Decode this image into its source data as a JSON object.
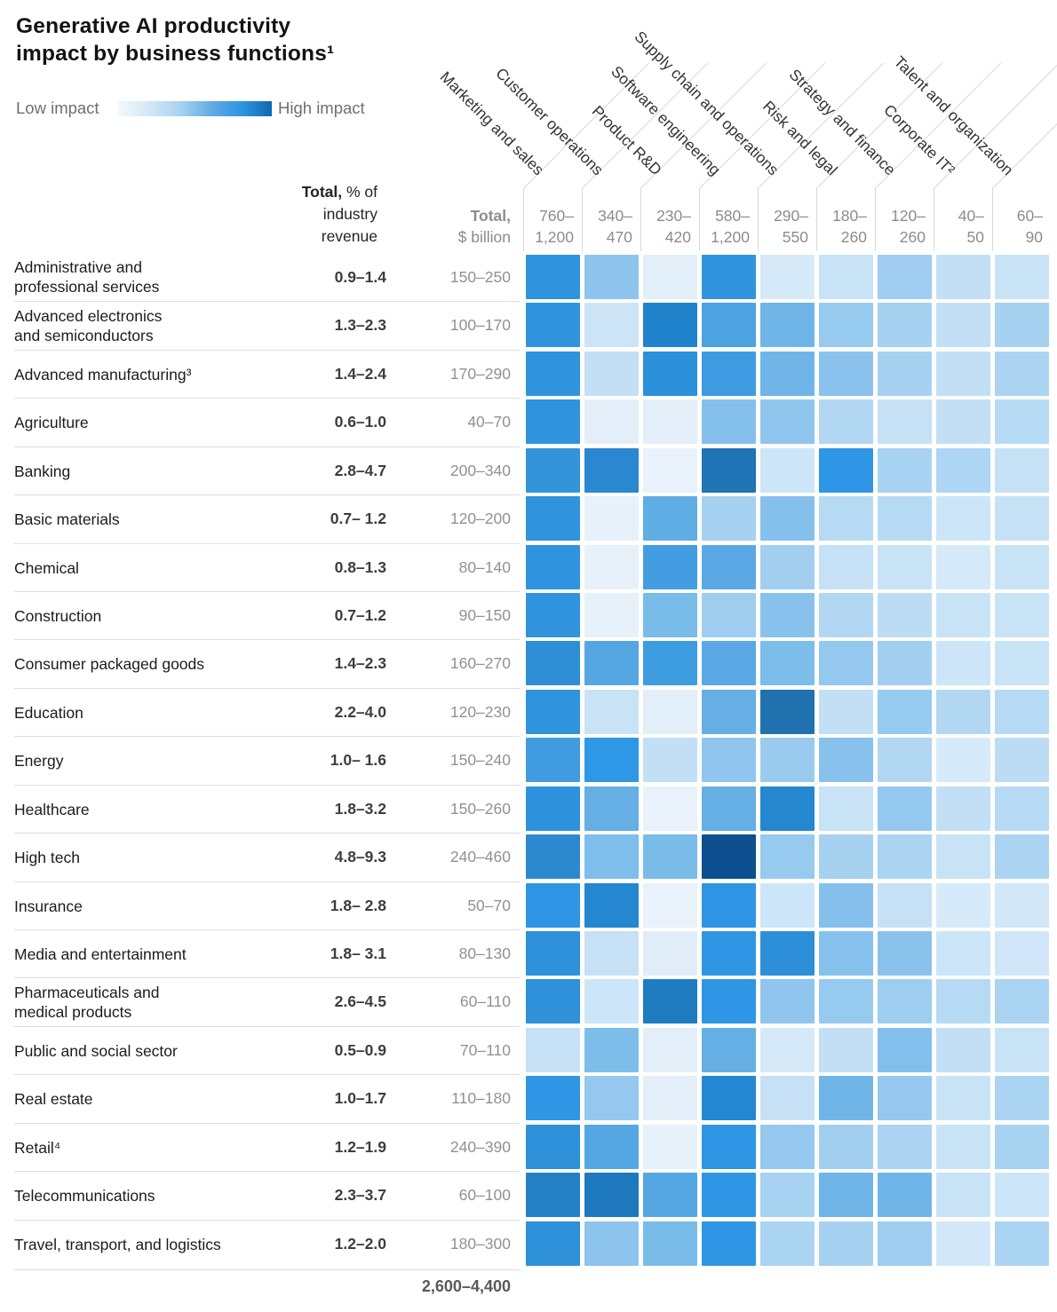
{
  "title": {
    "line1": "Generative AI productivity",
    "line2": "impact by business functions¹"
  },
  "legend": {
    "low_label": "Low impact",
    "high_label": "High impact",
    "gradient_low_color": "#f2f8fd",
    "gradient_high_color": "#1268ae"
  },
  "headers": {
    "pct": {
      "bold": "Total,",
      "rest": " % of",
      "line2": "industry",
      "line3": "revenue"
    },
    "billion": {
      "bold": "Total,",
      "line2": "$ billion"
    }
  },
  "grand_total_billion": "2,600–4,400",
  "chart_data": {
    "type": "heatmap",
    "title": "Generative AI productivity impact by business functions¹",
    "legend": {
      "low": "Low impact",
      "high": "High impact"
    },
    "columns": [
      {
        "label": "Marketing and sales",
        "total_billion": "760–1,200",
        "total_lines": [
          "760–",
          "1,200"
        ]
      },
      {
        "label": "Customer operations",
        "total_billion": "340–470",
        "total_lines": [
          "340–",
          "470"
        ]
      },
      {
        "label": "Product R&D",
        "total_billion": "230–420",
        "total_lines": [
          "230–",
          "420"
        ]
      },
      {
        "label": "Software engineering",
        "total_billion": "580–1,200",
        "total_lines": [
          "580–",
          "1,200"
        ]
      },
      {
        "label": "Supply chain and operations",
        "total_billion": "290–550",
        "total_lines": [
          "290–",
          "550"
        ]
      },
      {
        "label": "Risk and legal",
        "total_billion": "180–260",
        "total_lines": [
          "180–",
          "260"
        ]
      },
      {
        "label": "Strategy and finance",
        "total_billion": "120–260",
        "total_lines": [
          "120–",
          "260"
        ]
      },
      {
        "label": "Corporate IT²",
        "total_billion": "40–50",
        "total_lines": [
          "40–",
          "50"
        ]
      },
      {
        "label": "Talent and organization",
        "total_billion": "60–90",
        "total_lines": [
          "60–",
          "90"
        ]
      }
    ],
    "rows": [
      {
        "label": "Administrative and professional services",
        "label_lines": [
          "Administrative and",
          "professional services"
        ],
        "pct_of_revenue": "0.9–1.4",
        "total_billion": "150–250",
        "cells": [
          "#3093dd",
          "#8ec5ee",
          "#e2eef8",
          "#3093dd",
          "#d6e9f8",
          "#c8e2f6",
          "#9fccf0",
          "#c3dff5",
          "#c9e3f6"
        ]
      },
      {
        "label": "Advanced electronics and semiconductors",
        "label_lines": [
          "Advanced electronics",
          "and semiconductors"
        ],
        "pct_of_revenue": "1.3–2.3",
        "total_billion": "100–170",
        "cells": [
          "#3093dd",
          "#cde4f7",
          "#2283cd",
          "#4da2e2",
          "#70b5e8",
          "#97caef",
          "#a6d1f1",
          "#c3dff5",
          "#a6d1f1"
        ]
      },
      {
        "label": "Advanced manufacturing³",
        "label_lines": [
          "Advanced manufacturing³"
        ],
        "pct_of_revenue": "1.4–2.4",
        "total_billion": "170–290",
        "cells": [
          "#3093dd",
          "#c3dff5",
          "#2d90da",
          "#3d9be1",
          "#70b5e8",
          "#8ac2ed",
          "#a6d1f1",
          "#c3dff5",
          "#aad4f2"
        ]
      },
      {
        "label": "Agriculture",
        "label_lines": [
          "Agriculture"
        ],
        "pct_of_revenue": "0.6–1.0",
        "total_billion": "40–70",
        "cells": [
          "#3093dd",
          "#e3eef8",
          "#e3eef8",
          "#85c0ec",
          "#90c6ee",
          "#b2d7f3",
          "#c6e1f6",
          "#c3dff5",
          "#b7daf4"
        ]
      },
      {
        "label": "Banking",
        "label_lines": [
          "Banking"
        ],
        "pct_of_revenue": "2.8–4.7",
        "total_billion": "200–340",
        "cells": [
          "#3494da",
          "#2b87d0",
          "#e9f2fa",
          "#1e74b4",
          "#cde5f8",
          "#2e96e4",
          "#a9d3f2",
          "#aed5f3",
          "#c5e1f6"
        ]
      },
      {
        "label": "Basic materials",
        "label_lines": [
          "Basic materials"
        ],
        "pct_of_revenue": "0.7– 1.2",
        "total_billion": "120–200",
        "cells": [
          "#3093dd",
          "#e7f1f9",
          "#5fade5",
          "#a6d1f1",
          "#85c0ec",
          "#b7daf4",
          "#b7daf4",
          "#cde5f8",
          "#c5e1f6"
        ]
      },
      {
        "label": "Chemical",
        "label_lines": [
          "Chemical"
        ],
        "pct_of_revenue": "0.8–1.3",
        "total_billion": "80–140",
        "cells": [
          "#3093dd",
          "#e7f1f9",
          "#449de1",
          "#5aa9e4",
          "#a2cff0",
          "#c6e1f6",
          "#c9e3f6",
          "#d5e9f8",
          "#c9e3f6"
        ]
      },
      {
        "label": "Construction",
        "label_lines": [
          "Construction"
        ],
        "pct_of_revenue": "0.7–1.2",
        "total_billion": "90–150",
        "cells": [
          "#3093dd",
          "#e7f1f9",
          "#79bbe9",
          "#9ecdf0",
          "#88c2ec",
          "#b2d7f3",
          "#bcdcf4",
          "#c9e3f6",
          "#c9e3f6"
        ]
      },
      {
        "label": "Consumer packaged goods",
        "label_lines": [
          "Consumer packaged goods"
        ],
        "pct_of_revenue": "1.4–2.3",
        "total_billion": "160–270",
        "cells": [
          "#2e8fd6",
          "#55a7e3",
          "#3e9ce1",
          "#5aa9e4",
          "#7cbdea",
          "#94c8ee",
          "#a2cff0",
          "#cde5f8",
          "#c9e3f6"
        ]
      },
      {
        "label": "Education",
        "label_lines": [
          "Education"
        ],
        "pct_of_revenue": "2.2–4.0",
        "total_billion": "120–230",
        "cells": [
          "#3093dd",
          "#c9e3f6",
          "#e2eef8",
          "#65afe5",
          "#1f72af",
          "#c3dff5",
          "#97caef",
          "#b2d7f3",
          "#b7daf4"
        ]
      },
      {
        "label": "Energy",
        "label_lines": [
          "Energy"
        ],
        "pct_of_revenue": "1.0– 1.6",
        "total_billion": "150–240",
        "cells": [
          "#419be0",
          "#2e98e6",
          "#c3dff5",
          "#90c6ee",
          "#9acbef",
          "#88c2ec",
          "#b2d7f3",
          "#d7eaf9",
          "#bcdcf4"
        ]
      },
      {
        "label": "Healthcare",
        "label_lines": [
          "Healthcare"
        ],
        "pct_of_revenue": "1.8–3.2",
        "total_billion": "150–260",
        "cells": [
          "#2e93dc",
          "#65afe5",
          "#e9f2fa",
          "#65afe5",
          "#2487cf",
          "#c9e3f6",
          "#94c8ee",
          "#c3dff5",
          "#b7daf4"
        ]
      },
      {
        "label": "High tech",
        "label_lines": [
          "High tech"
        ],
        "pct_of_revenue": "4.8–9.3",
        "total_billion": "240–460",
        "cells": [
          "#2d89cf",
          "#7fbdeb",
          "#79bbe9",
          "#0d4f8f",
          "#97caef",
          "#a6d1f1",
          "#aad4f2",
          "#c9e3f6",
          "#aad4f2"
        ]
      },
      {
        "label": "Insurance",
        "label_lines": [
          "Insurance"
        ],
        "pct_of_revenue": "1.8– 2.8",
        "total_billion": "50–70",
        "cells": [
          "#2e96e4",
          "#2487cf",
          "#e9f2fa",
          "#2e96e4",
          "#cde5f8",
          "#85c0ec",
          "#c6e1f6",
          "#d7eaf9",
          "#d2e7f8"
        ]
      },
      {
        "label": "Media and entertainment",
        "label_lines": [
          "Media and entertainment"
        ],
        "pct_of_revenue": "1.8– 3.1",
        "total_billion": "80–130",
        "cells": [
          "#2e91da",
          "#c6e1f6",
          "#e0edf8",
          "#2e96e4",
          "#2e8fd9",
          "#85c1ec",
          "#8ac2ec",
          "#cde5f8",
          "#d0e6f8"
        ]
      },
      {
        "label": "Pharmaceuticals and medical products",
        "label_lines": [
          "Pharmaceuticals and",
          "medical products"
        ],
        "pct_of_revenue": "2.6–4.5",
        "total_billion": "60–110",
        "cells": [
          "#2e91da",
          "#cde5f8",
          "#1f7cc0",
          "#2e96e4",
          "#90c6ee",
          "#97caef",
          "#9ecdf0",
          "#b7daf4",
          "#aad4f2"
        ]
      },
      {
        "label": "Public and social sector",
        "label_lines": [
          "Public and social sector"
        ],
        "pct_of_revenue": "0.5–0.9",
        "total_billion": "70–110",
        "cells": [
          "#c6e1f6",
          "#7cbdea",
          "#e3eef8",
          "#65afe5",
          "#d5e9f8",
          "#c3dff5",
          "#82bfec",
          "#c3dff5",
          "#c9e3f6"
        ]
      },
      {
        "label": "Real estate",
        "label_lines": [
          "Real estate"
        ],
        "pct_of_revenue": "1.0–1.7",
        "total_billion": "110–180",
        "cells": [
          "#2e96e4",
          "#94c8ee",
          "#e3eef8",
          "#2487d2",
          "#c6e1f6",
          "#70b5e8",
          "#94c8ee",
          "#c9e3f6",
          "#aad4f2"
        ]
      },
      {
        "label": "Retail⁴",
        "label_lines": [
          "Retail⁴"
        ],
        "pct_of_revenue": "1.2–1.9",
        "total_billion": "240–390",
        "cells": [
          "#2e91da",
          "#55a7e3",
          "#e7f1f9",
          "#2e96e4",
          "#94c8ee",
          "#a2cff0",
          "#aad4f2",
          "#c9e3f6",
          "#a8d2f1"
        ]
      },
      {
        "label": "Telecommunications",
        "label_lines": [
          "Telecommunications"
        ],
        "pct_of_revenue": "2.3–3.7",
        "total_billion": "60–100",
        "cells": [
          "#2581c5",
          "#1e78bd",
          "#55a7e3",
          "#2e96e4",
          "#a8d2f1",
          "#70b5e8",
          "#70b5e8",
          "#c9e3f6",
          "#cde5f8"
        ]
      },
      {
        "label": "Travel, transport, and logistics",
        "label_lines": [
          "Travel, transport, and logistics"
        ],
        "pct_of_revenue": "1.2–2.0",
        "total_billion": "180–300",
        "cells": [
          "#2e91da",
          "#8cc4ed",
          "#79bbe9",
          "#2e96e4",
          "#aad4f2",
          "#a6d1f1",
          "#9ecdf0",
          "#d2e7f8",
          "#aad4f2"
        ]
      }
    ],
    "grand_total_billion": "2,600–4,400",
    "color_scale_note": "cell color encodes impact: light #e9f2fa = low impact, dark #0d4f8f = high impact"
  }
}
